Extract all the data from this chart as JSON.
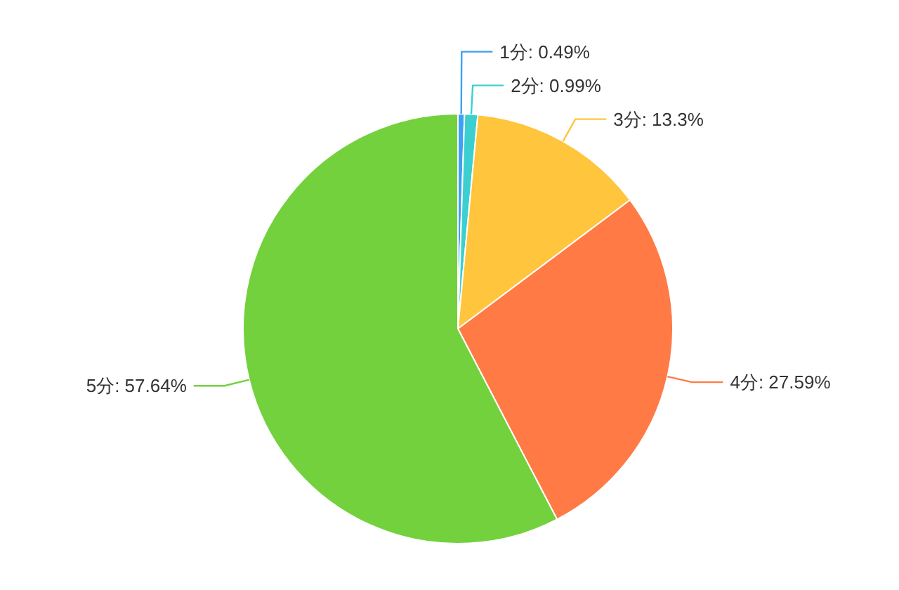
{
  "chart_data": {
    "type": "pie",
    "categories": [
      "1分",
      "2分",
      "3分",
      "4分",
      "5分"
    ],
    "values": [
      0.49,
      0.99,
      13.3,
      27.59,
      57.64
    ],
    "colors": [
      "#3ba1f0",
      "#3ccfcf",
      "#ffc53d",
      "#ff7a45",
      "#73d13d"
    ],
    "value_labels": [
      ": 0.49%",
      ": 0.99%",
      ": 13.3%",
      ": 27.59%",
      ": 57.64%"
    ]
  }
}
